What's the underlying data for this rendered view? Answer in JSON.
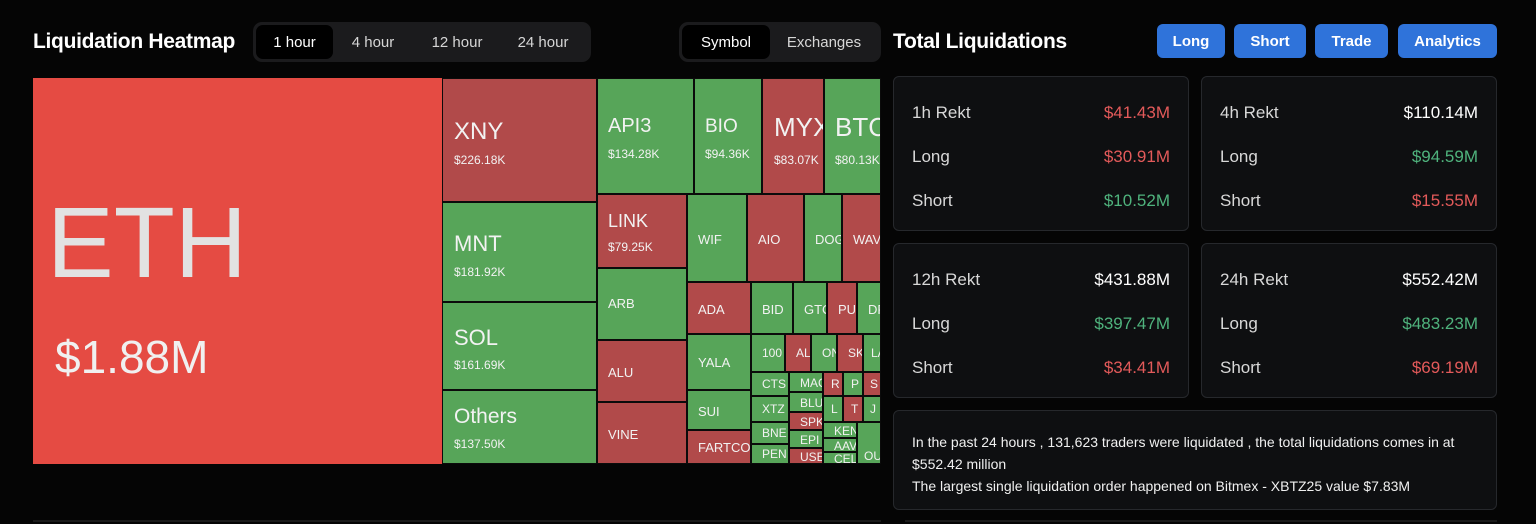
{
  "heatmap": {
    "title": "Liquidation Heatmap",
    "time_tabs": [
      "1 hour",
      "4 hour",
      "12 hour",
      "24 hour"
    ],
    "active_time_tab": "1 hour",
    "group_tabs": [
      "Symbol",
      "Exchanges"
    ],
    "active_group_tab": "Symbol",
    "tiles": {
      "eth": {
        "symbol": "ETH",
        "value": "$1.88M"
      },
      "xny": {
        "symbol": "XNY",
        "value": "$226.18K"
      },
      "mnt": {
        "symbol": "MNT",
        "value": "$181.92K"
      },
      "sol": {
        "symbol": "SOL",
        "value": "$161.69K"
      },
      "others": {
        "symbol": "Others",
        "value": "$137.50K"
      },
      "api3": {
        "symbol": "API3",
        "value": "$134.28K"
      },
      "bio": {
        "symbol": "BIO",
        "value": "$94.36K"
      },
      "myx": {
        "symbol": "MYX",
        "value": "$83.07K"
      },
      "btc": {
        "symbol": "BTC",
        "value": "$80.13K"
      },
      "link": {
        "symbol": "LINK",
        "value": "$79.25K"
      },
      "arb": {
        "symbol": "ARB"
      },
      "alu": {
        "symbol": "ALU"
      },
      "vine": {
        "symbol": "VINE"
      },
      "wif": {
        "symbol": "WIF"
      },
      "aio": {
        "symbol": "AIO"
      },
      "dog": {
        "symbol": "DOG"
      },
      "wav": {
        "symbol": "WAV"
      },
      "ada": {
        "symbol": "ADA"
      },
      "yala": {
        "symbol": "YALA"
      },
      "sui": {
        "symbol": "SUI"
      },
      "fartcoi": {
        "symbol": "FARTCOI"
      },
      "bid": {
        "symbol": "BID"
      },
      "gtc": {
        "symbol": "GTC"
      },
      "pu": {
        "symbol": "PU"
      },
      "df": {
        "symbol": "DF"
      },
      "t100": {
        "symbol": "100"
      },
      "al": {
        "symbol": "AL"
      },
      "on": {
        "symbol": "ON"
      },
      "sk": {
        "symbol": "SK"
      },
      "la": {
        "symbol": "LA"
      },
      "cts": {
        "symbol": "CTS"
      },
      "mac": {
        "symbol": "MAC"
      },
      "rr": {
        "symbol": "R"
      },
      "pp": {
        "symbol": "P"
      },
      "ss": {
        "symbol": "S"
      },
      "xtz": {
        "symbol": "XTZ"
      },
      "blu": {
        "symbol": "BLU"
      },
      "ll": {
        "symbol": "L"
      },
      "tt": {
        "symbol": "T"
      },
      "jj": {
        "symbol": "J"
      },
      "spk": {
        "symbol": "SPK"
      },
      "bne": {
        "symbol": "BNE"
      },
      "ken": {
        "symbol": "KEN"
      },
      "epi": {
        "symbol": "EPI"
      },
      "aav": {
        "symbol": "AAV"
      },
      "pen": {
        "symbol": "PEN"
      },
      "use": {
        "symbol": "USE"
      },
      "cel": {
        "symbol": "CEL"
      },
      "ou": {
        "symbol": "OU"
      }
    }
  },
  "totals": {
    "title": "Total Liquidations",
    "buttons": [
      "Long",
      "Short",
      "Trade",
      "Analytics"
    ],
    "cards": [
      {
        "label": "1h Rekt",
        "total": "$41.43M",
        "long_label": "Long",
        "long": "$30.91M",
        "short_label": "Short",
        "short": "$10.52M"
      },
      {
        "label": "4h Rekt",
        "total": "$110.14M",
        "long_label": "Long",
        "long": "$94.59M",
        "short_label": "Short",
        "short": "$15.55M"
      },
      {
        "label": "12h Rekt",
        "total": "$431.88M",
        "long_label": "Long",
        "long": "$397.47M",
        "short_label": "Short",
        "short": "$34.41M"
      },
      {
        "label": "24h Rekt",
        "total": "$552.42M",
        "long_label": "Long",
        "long": "$483.23M",
        "short_label": "Short",
        "short": "$69.19M"
      }
    ],
    "summary_line1": "In the past 24 hours , 131,623 traders were liquidated , the total liquidations comes in at $552.42 million",
    "summary_line2": "The largest single liquidation order happened on Bitmex - XBTZ25 value $7.83M"
  },
  "colors": {
    "eth_red": "#e54b43",
    "tile_red": "#b14a4a",
    "tile_green": "#57a559",
    "button_blue": "#2f73da",
    "value_red": "#e35a5a",
    "value_green": "#4fb37d"
  }
}
